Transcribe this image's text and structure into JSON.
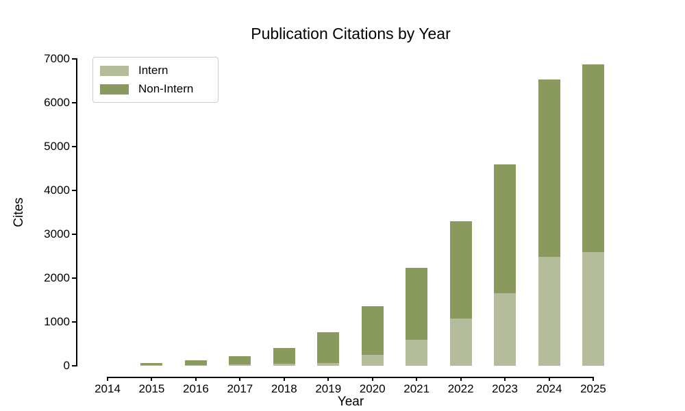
{
  "chart_data": {
    "type": "bar",
    "stacked": true,
    "title": "Publication Citations by Year",
    "xlabel": "Year",
    "ylabel": "Cites",
    "categories": [
      "2014",
      "2015",
      "2016",
      "2017",
      "2018",
      "2019",
      "2020",
      "2021",
      "2022",
      "2023",
      "2024",
      "2025"
    ],
    "series": [
      {
        "name": "Intern",
        "color": "#b5bc9c",
        "values": [
          0,
          15,
          20,
          30,
          50,
          70,
          250,
          600,
          1080,
          1650,
          2480,
          2600
        ]
      },
      {
        "name": "Non-Intern",
        "color": "#8a9a5e",
        "values": [
          0,
          50,
          110,
          190,
          360,
          700,
          1110,
          1630,
          2220,
          2950,
          4050,
          4280
        ]
      }
    ],
    "totals": [
      0,
      65,
      130,
      220,
      410,
      770,
      1360,
      2230,
      3300,
      4600,
      6530,
      6880
    ],
    "ylim": [
      0,
      7000
    ],
    "ytick_step": 1000,
    "yticks": [
      "0",
      "1000",
      "2000",
      "3000",
      "4000",
      "5000",
      "6000",
      "7000"
    ],
    "legend_position": "upper left",
    "grid": false,
    "background_color": "#ffffff",
    "axis_color": "#000000"
  }
}
